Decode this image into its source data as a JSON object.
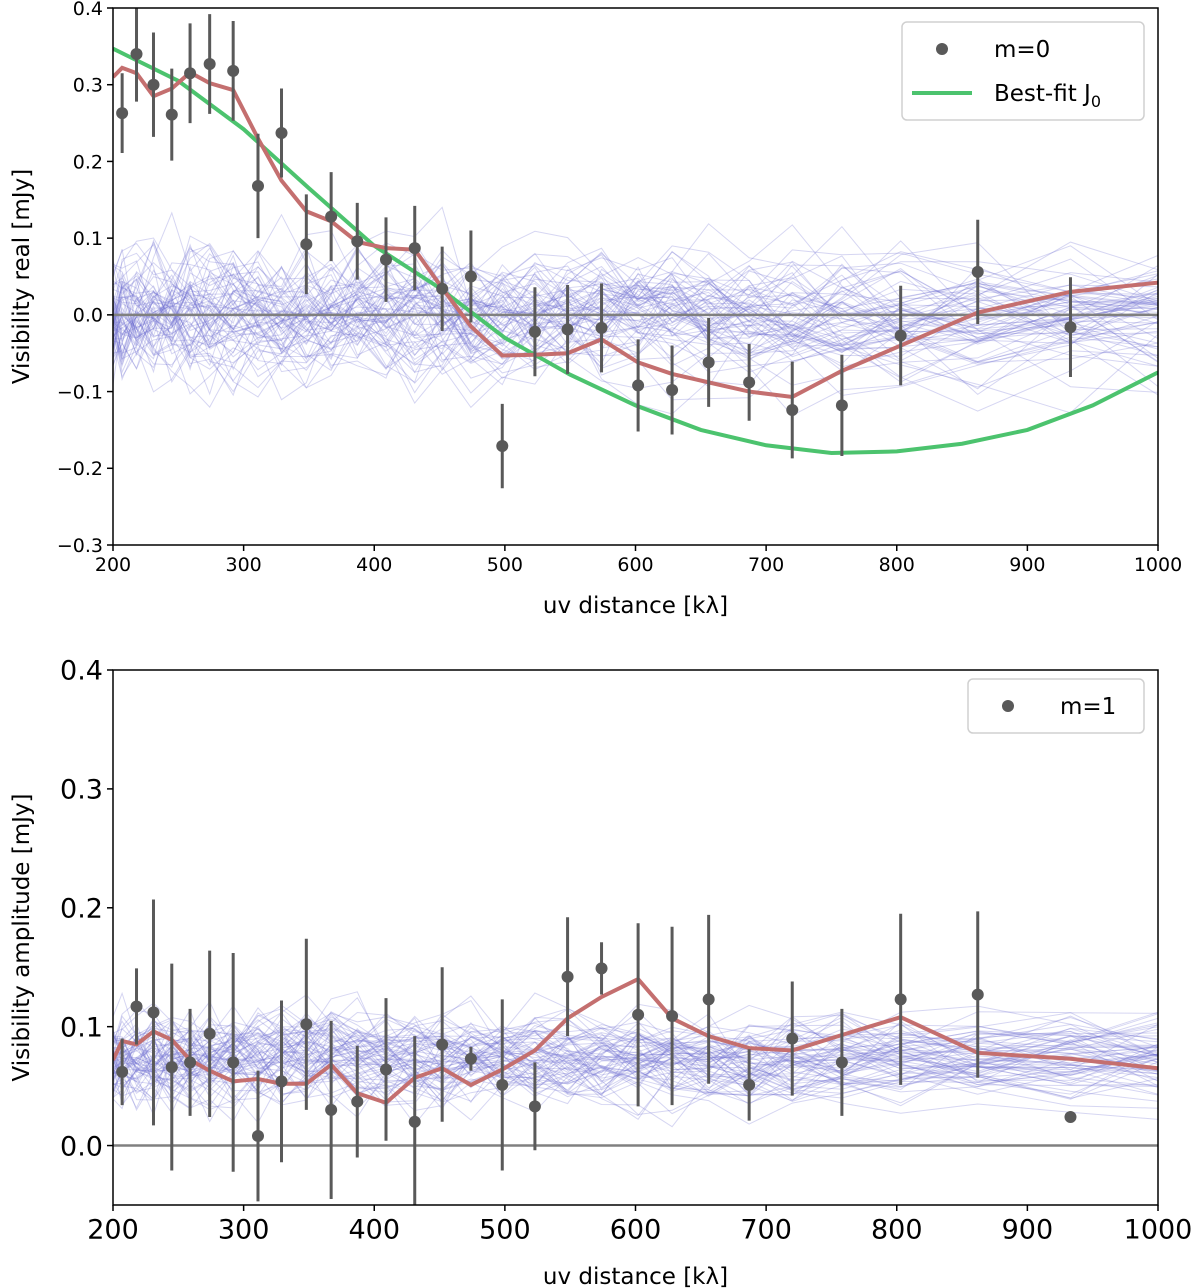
{
  "colors": {
    "data": "#595959",
    "model": "#c0504d",
    "model_stroke": "#c46f6f",
    "bessel": "#4cc36e",
    "noise": "#6a6ad0",
    "zero_line": "#808080"
  },
  "chart_data": [
    {
      "type": "scatter",
      "name": "m0-panel",
      "xlabel": "uv distance [kλ]",
      "ylabel": "Visibility real [mJy]",
      "xlim": [
        200,
        1000
      ],
      "ylim": [
        -0.3,
        0.4
      ],
      "xticks": [
        200,
        300,
        400,
        500,
        600,
        700,
        800,
        900,
        1000
      ],
      "yticks": [
        -0.3,
        -0.2,
        -0.1,
        0.0,
        0.1,
        0.2,
        0.3,
        0.4
      ],
      "ytick_labels": [
        "−0.3",
        "−0.2",
        "−0.1",
        "0.0",
        "0.1",
        "0.2",
        "0.3",
        "0.4"
      ],
      "legend": {
        "placement": "top-right",
        "entries": [
          {
            "label": "m=0",
            "kind": "marker"
          },
          {
            "label": "Best-fit J",
            "sub": "0",
            "kind": "line"
          }
        ]
      },
      "points": {
        "x": [
          207,
          218,
          231,
          245,
          259,
          274,
          292,
          311,
          329,
          348,
          367,
          387,
          409,
          431,
          452,
          474,
          498,
          523,
          548,
          574,
          602,
          628,
          656,
          687,
          720,
          758,
          803,
          862,
          933
        ],
        "y": [
          0.263,
          0.34,
          0.3,
          0.261,
          0.315,
          0.327,
          0.318,
          0.168,
          0.237,
          0.092,
          0.128,
          0.096,
          0.072,
          0.087,
          0.034,
          0.05,
          -0.171,
          -0.022,
          -0.019,
          -0.017,
          -0.092,
          -0.098,
          -0.062,
          -0.088,
          -0.124,
          -0.118,
          -0.027,
          0.056,
          -0.016
        ],
        "err": [
          0.052,
          0.062,
          0.068,
          0.06,
          0.065,
          0.065,
          0.065,
          0.068,
          0.058,
          0.065,
          0.058,
          0.05,
          0.055,
          0.055,
          0.055,
          0.06,
          0.055,
          0.058,
          0.058,
          0.058,
          0.06,
          0.058,
          0.058,
          0.05,
          0.063,
          0.066,
          0.065,
          0.068,
          0.065
        ]
      },
      "model_line": {
        "x": [
          200,
          207,
          218,
          231,
          245,
          259,
          274,
          292,
          311,
          329,
          348,
          367,
          387,
          409,
          431,
          452,
          474,
          498,
          523,
          548,
          574,
          602,
          628,
          656,
          687,
          720,
          758,
          803,
          862,
          933,
          1000
        ],
        "y": [
          0.31,
          0.322,
          0.315,
          0.285,
          0.295,
          0.316,
          0.302,
          0.293,
          0.23,
          0.175,
          0.135,
          0.122,
          0.095,
          0.087,
          0.085,
          0.035,
          -0.015,
          -0.053,
          -0.052,
          -0.05,
          -0.032,
          -0.062,
          -0.077,
          -0.088,
          -0.1,
          -0.107,
          -0.073,
          -0.04,
          0.003,
          0.03,
          0.042
        ]
      },
      "bessel_line": {
        "x": [
          200,
          250,
          300,
          350,
          400,
          450,
          500,
          550,
          600,
          650,
          700,
          750,
          800,
          850,
          900,
          950,
          1000
        ],
        "y": [
          0.347,
          0.305,
          0.242,
          0.165,
          0.09,
          0.035,
          -0.03,
          -0.078,
          -0.118,
          -0.15,
          -0.17,
          -0.18,
          -0.178,
          -0.168,
          -0.15,
          -0.118,
          -0.075
        ]
      },
      "noise": {
        "count": 70,
        "center": 0.0,
        "spread": 0.045
      }
    },
    {
      "type": "scatter",
      "name": "m1-panel",
      "xlabel": "uv distance [kλ]",
      "ylabel": "Visibility amplitude [mJy]",
      "xlim": [
        200,
        1000
      ],
      "ylim": [
        -0.05,
        0.4
      ],
      "xticks": [
        200,
        300,
        400,
        500,
        600,
        700,
        800,
        900,
        1000
      ],
      "yticks": [
        0.0,
        0.1,
        0.2,
        0.3,
        0.4
      ],
      "ytick_labels": [
        "0.0",
        "0.1",
        "0.2",
        "0.3",
        "0.4"
      ],
      "legend": {
        "placement": "top-right",
        "entries": [
          {
            "label": "m=1",
            "kind": "marker"
          }
        ]
      },
      "points": {
        "x": [
          207,
          218,
          231,
          245,
          259,
          274,
          292,
          311,
          329,
          348,
          367,
          387,
          409,
          431,
          452,
          474,
          498,
          523,
          548,
          574,
          602,
          628,
          656,
          687,
          720,
          758,
          803,
          862,
          933
        ],
        "y": [
          0.062,
          0.117,
          0.112,
          0.066,
          0.07,
          0.094,
          0.07,
          0.008,
          0.054,
          0.102,
          0.03,
          0.037,
          0.064,
          0.02,
          0.085,
          0.073,
          0.051,
          0.033,
          0.142,
          0.149,
          0.11,
          0.109,
          0.123,
          0.051,
          0.09,
          0.07,
          0.123,
          0.127,
          0.024
        ],
        "err": [
          0.028,
          0.032,
          0.095,
          0.087,
          0.045,
          0.07,
          0.092,
          0.055,
          0.068,
          0.072,
          0.075,
          0.047,
          0.06,
          0.072,
          0.065,
          0.01,
          0.072,
          0.037,
          0.05,
          0.022,
          0.077,
          0.075,
          0.071,
          0.03,
          0.048,
          0.045,
          0.072,
          0.07,
          0.0
        ]
      },
      "model_line": {
        "x": [
          200,
          207,
          218,
          231,
          245,
          259,
          274,
          292,
          311,
          329,
          348,
          367,
          387,
          409,
          431,
          452,
          474,
          498,
          523,
          548,
          574,
          602,
          628,
          656,
          687,
          720,
          758,
          803,
          862,
          933,
          1000
        ],
        "y": [
          0.072,
          0.088,
          0.085,
          0.096,
          0.089,
          0.072,
          0.063,
          0.054,
          0.056,
          0.052,
          0.052,
          0.068,
          0.044,
          0.036,
          0.057,
          0.065,
          0.051,
          0.064,
          0.08,
          0.107,
          0.125,
          0.14,
          0.107,
          0.092,
          0.082,
          0.08,
          0.093,
          0.108,
          0.078,
          0.073,
          0.065
        ]
      },
      "noise": {
        "count": 70,
        "center": 0.072,
        "spread": 0.02
      }
    }
  ]
}
